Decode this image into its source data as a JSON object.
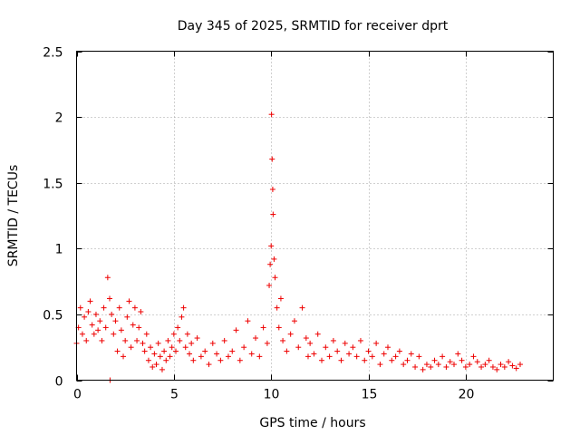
{
  "chart_data": {
    "type": "scatter",
    "title": "Day 345 of 2025, SRMTID for receiver dprt",
    "xlabel": "GPS time / hours",
    "ylabel": "SRMTID / TECUs",
    "xlim": [
      0,
      24.5
    ],
    "ylim": [
      0,
      2.5
    ],
    "x_ticks": [
      0,
      5,
      10,
      15,
      20
    ],
    "x_tick_labels": [
      "0",
      "5",
      "10",
      "15",
      "20"
    ],
    "y_ticks": [
      0,
      0.5,
      1,
      1.5,
      2,
      2.5
    ],
    "y_tick_labels": [
      "0",
      "0.5",
      "1",
      "1.5",
      "2",
      "2.5"
    ],
    "grid": true,
    "marker": "plus",
    "marker_color": "#ee0000",
    "series": [
      {
        "name": "SRMTID",
        "x": [
          0.0,
          0.1,
          0.2,
          0.3,
          0.4,
          0.5,
          0.6,
          0.7,
          0.8,
          0.9,
          1.0,
          1.1,
          1.2,
          1.3,
          1.4,
          1.5,
          1.6,
          1.7,
          1.72,
          1.8,
          1.9,
          2.0,
          2.1,
          2.2,
          2.3,
          2.4,
          2.5,
          2.6,
          2.7,
          2.8,
          2.9,
          3.0,
          3.1,
          3.2,
          3.3,
          3.4,
          3.5,
          3.6,
          3.7,
          3.8,
          3.9,
          4.0,
          4.1,
          4.2,
          4.3,
          4.4,
          4.5,
          4.6,
          4.7,
          4.8,
          4.9,
          5.0,
          5.1,
          5.2,
          5.3,
          5.4,
          5.5,
          5.6,
          5.7,
          5.8,
          5.9,
          6.0,
          6.2,
          6.4,
          6.6,
          6.8,
          7.0,
          7.2,
          7.4,
          7.6,
          7.8,
          8.0,
          8.2,
          8.4,
          8.6,
          8.8,
          9.0,
          9.2,
          9.4,
          9.6,
          9.8,
          9.9,
          9.95,
          10.0,
          10.02,
          10.05,
          10.08,
          10.1,
          10.15,
          10.2,
          10.3,
          10.4,
          10.5,
          10.6,
          10.8,
          11.0,
          11.2,
          11.4,
          11.6,
          11.8,
          11.9,
          12.0,
          12.2,
          12.4,
          12.6,
          12.8,
          13.0,
          13.2,
          13.4,
          13.6,
          13.8,
          14.0,
          14.2,
          14.4,
          14.6,
          14.8,
          15.0,
          15.2,
          15.4,
          15.6,
          15.8,
          16.0,
          16.2,
          16.4,
          16.6,
          16.8,
          17.0,
          17.2,
          17.4,
          17.6,
          17.8,
          18.0,
          18.2,
          18.4,
          18.6,
          18.8,
          19.0,
          19.2,
          19.4,
          19.6,
          19.8,
          20.0,
          20.2,
          20.4,
          20.6,
          20.8,
          21.0,
          21.2,
          21.4,
          21.6,
          21.8,
          22.0,
          22.2,
          22.4,
          22.6,
          22.8
        ],
        "values": [
          0.28,
          0.4,
          0.55,
          0.35,
          0.48,
          0.3,
          0.52,
          0.6,
          0.42,
          0.35,
          0.5,
          0.38,
          0.45,
          0.3,
          0.55,
          0.4,
          0.78,
          0.62,
          0.0,
          0.5,
          0.35,
          0.45,
          0.22,
          0.55,
          0.38,
          0.18,
          0.3,
          0.48,
          0.6,
          0.25,
          0.42,
          0.55,
          0.3,
          0.4,
          0.52,
          0.28,
          0.22,
          0.35,
          0.15,
          0.25,
          0.1,
          0.2,
          0.12,
          0.28,
          0.18,
          0.08,
          0.22,
          0.15,
          0.3,
          0.18,
          0.25,
          0.35,
          0.22,
          0.4,
          0.3,
          0.48,
          0.55,
          0.25,
          0.35,
          0.2,
          0.28,
          0.15,
          0.32,
          0.18,
          0.22,
          0.12,
          0.28,
          0.2,
          0.15,
          0.3,
          0.18,
          0.22,
          0.38,
          0.15,
          0.25,
          0.45,
          0.2,
          0.32,
          0.18,
          0.4,
          0.28,
          0.72,
          0.88,
          1.02,
          2.02,
          1.68,
          1.45,
          1.26,
          0.92,
          0.78,
          0.55,
          0.4,
          0.62,
          0.3,
          0.22,
          0.35,
          0.45,
          0.25,
          0.55,
          0.32,
          0.18,
          0.28,
          0.2,
          0.35,
          0.15,
          0.25,
          0.18,
          0.3,
          0.22,
          0.15,
          0.28,
          0.2,
          0.25,
          0.18,
          0.3,
          0.15,
          0.22,
          0.18,
          0.28,
          0.12,
          0.2,
          0.25,
          0.15,
          0.18,
          0.22,
          0.12,
          0.15,
          0.2,
          0.1,
          0.18,
          0.08,
          0.12,
          0.1,
          0.15,
          0.12,
          0.18,
          0.1,
          0.14,
          0.12,
          0.2,
          0.15,
          0.1,
          0.12,
          0.18,
          0.14,
          0.1,
          0.12,
          0.15,
          0.1,
          0.08,
          0.12,
          0.1,
          0.14,
          0.11,
          0.09,
          0.12
        ]
      }
    ]
  }
}
